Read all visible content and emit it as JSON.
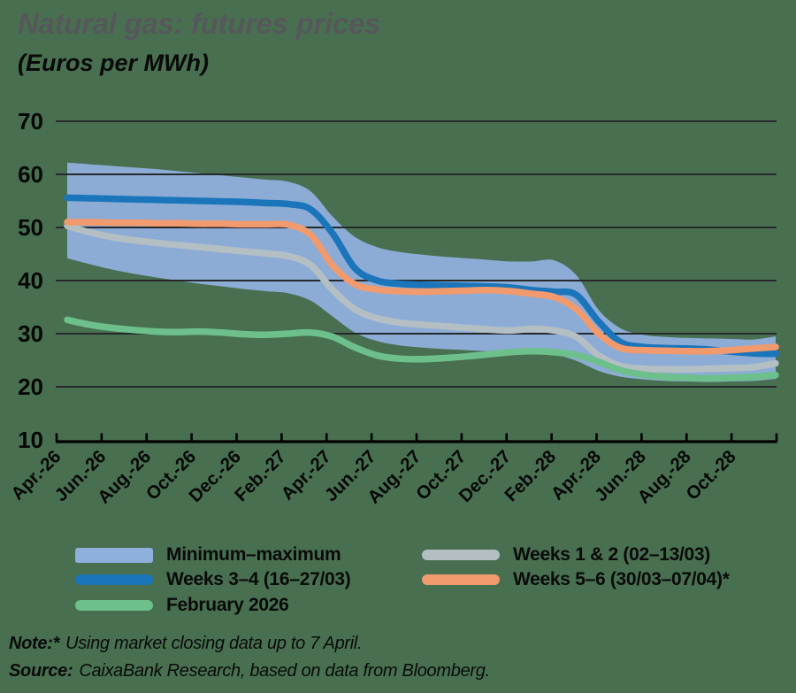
{
  "page": {
    "background": "#487050",
    "title": "Natural gas: futures prices",
    "subtitle": "(Euros per MWh)"
  },
  "legend": {
    "items": [
      {
        "label": "Minimum–maximum",
        "color": "#8fafdc",
        "type": "band"
      },
      {
        "label": "Weeks 1 & 2 (02–13/03)",
        "color": "#b4bfc4",
        "type": "line"
      },
      {
        "label": "Weeks 3–4 (16–27/03)",
        "color": "#1b75ba",
        "type": "line"
      },
      {
        "label": "Weeks 5–6 (30/03–07/04)*",
        "color": "#f19a6e",
        "type": "line"
      },
      {
        "label": "February 2026",
        "color": "#6dbf8b",
        "type": "line"
      }
    ]
  },
  "note": {
    "label": "Note:",
    "star": "*",
    "text": "Using market closing data up to 7 April."
  },
  "source": {
    "label": "Source:",
    "text": "CaixaBank Research, based on data from Bloomberg."
  },
  "chart_data": {
    "type": "line",
    "title": "Natural gas: futures prices",
    "subtitle": "(Euros per MWh)",
    "unit": "Euros per MWh",
    "grid": "horizontal",
    "legend_position": "bottom",
    "ylim": [
      10,
      70
    ],
    "yticks": [
      70,
      60,
      50,
      40,
      30,
      20,
      10
    ],
    "x_tick_labels": [
      "Apr.-26",
      "Jun.-26",
      "Aug.-26",
      "Oct.-26",
      "Dec.-26",
      "Feb.-27",
      "Apr.-27",
      "Jun.-27",
      "Aug.-27",
      "Oct.-27",
      "Dec.-27",
      "Feb.-28",
      "Apr.-28",
      "Jun.-28",
      "Aug.-28",
      "Oct.-28"
    ],
    "x_months": [
      "Apr-26",
      "May-26",
      "Jun-26",
      "Jul-26",
      "Aug-26",
      "Sep-26",
      "Oct-26",
      "Nov-26",
      "Dec-26",
      "Jan-27",
      "Feb-27",
      "Mar-27",
      "Apr-27",
      "May-27",
      "Jun-27",
      "Jul-27",
      "Aug-27",
      "Sep-27",
      "Oct-27",
      "Nov-27",
      "Dec-27",
      "Jan-28",
      "Feb-28",
      "Mar-28",
      "Apr-28",
      "May-28",
      "Jun-28",
      "Jul-28",
      "Aug-28",
      "Sep-28",
      "Oct-28",
      "Nov-28",
      "Dec-28"
    ],
    "band": {
      "name": "Minimum–maximum",
      "color": "#8fafdc",
      "max": [
        62.2,
        61.9,
        61.6,
        61.3,
        61.0,
        60.6,
        60.2,
        59.8,
        59.4,
        59.0,
        58.6,
        56.8,
        52.0,
        48.2,
        46.3,
        45.4,
        44.9,
        44.5,
        44.2,
        43.9,
        43.6,
        43.6,
        43.8,
        41.0,
        34.5,
        31.0,
        29.8,
        29.4,
        29.2,
        29.1,
        29.0,
        28.9,
        29.5
      ],
      "min": [
        44.2,
        43.1,
        42.1,
        41.3,
        40.6,
        40.0,
        39.4,
        38.9,
        38.4,
        38.0,
        37.6,
        36.2,
        33.2,
        30.2,
        28.6,
        27.8,
        27.4,
        27.1,
        26.9,
        26.7,
        26.5,
        26.3,
        26.1,
        24.9,
        23.0,
        21.9,
        21.4,
        21.1,
        21.0,
        20.9,
        21.0,
        21.1,
        21.5
      ]
    },
    "series": [
      {
        "name": "Weeks 1 & 2 (02–13/03)",
        "color": "#b4bfc4",
        "values": [
          50.3,
          49.1,
          48.2,
          47.6,
          47.1,
          46.7,
          46.3,
          45.9,
          45.5,
          45.1,
          44.6,
          42.9,
          38.2,
          34.6,
          32.9,
          32.1,
          31.7,
          31.4,
          31.1,
          30.8,
          30.6,
          30.9,
          30.6,
          29.4,
          25.9,
          23.9,
          23.4,
          23.3,
          23.3,
          23.4,
          23.5,
          23.7,
          24.4
        ]
      },
      {
        "name": "February 2026",
        "color": "#6dbf8b",
        "values": [
          32.6,
          31.7,
          31.1,
          30.7,
          30.4,
          30.3,
          30.4,
          30.2,
          29.9,
          29.8,
          30.0,
          30.2,
          29.4,
          27.4,
          25.9,
          25.3,
          25.2,
          25.4,
          25.7,
          26.1,
          26.5,
          26.7,
          26.5,
          26.0,
          24.7,
          23.1,
          22.3,
          21.9,
          21.7,
          21.6,
          21.7,
          21.9,
          22.2
        ]
      },
      {
        "name": "Weeks 3–4 (16–27/03)",
        "color": "#1b75ba",
        "values": [
          55.6,
          55.5,
          55.4,
          55.3,
          55.2,
          55.1,
          55.0,
          54.9,
          54.8,
          54.6,
          54.4,
          53.4,
          48.8,
          42.3,
          40.0,
          39.4,
          39.2,
          39.1,
          39.0,
          38.9,
          38.7,
          38.2,
          37.9,
          37.3,
          32.3,
          28.4,
          27.5,
          27.3,
          27.2,
          27.0,
          26.6,
          26.3,
          26.2
        ]
      },
      {
        "name": "Weeks 5–6 (30/03–07/04)*",
        "color": "#f19a6e",
        "values": [
          51.0,
          51.0,
          50.9,
          50.9,
          50.8,
          50.8,
          50.7,
          50.7,
          50.6,
          50.6,
          50.5,
          48.6,
          42.8,
          39.3,
          38.3,
          38.0,
          37.9,
          38.0,
          38.1,
          38.2,
          38.0,
          37.5,
          36.9,
          34.6,
          30.0,
          27.3,
          26.9,
          26.8,
          26.7,
          26.7,
          26.9,
          27.2,
          27.5
        ]
      }
    ]
  }
}
